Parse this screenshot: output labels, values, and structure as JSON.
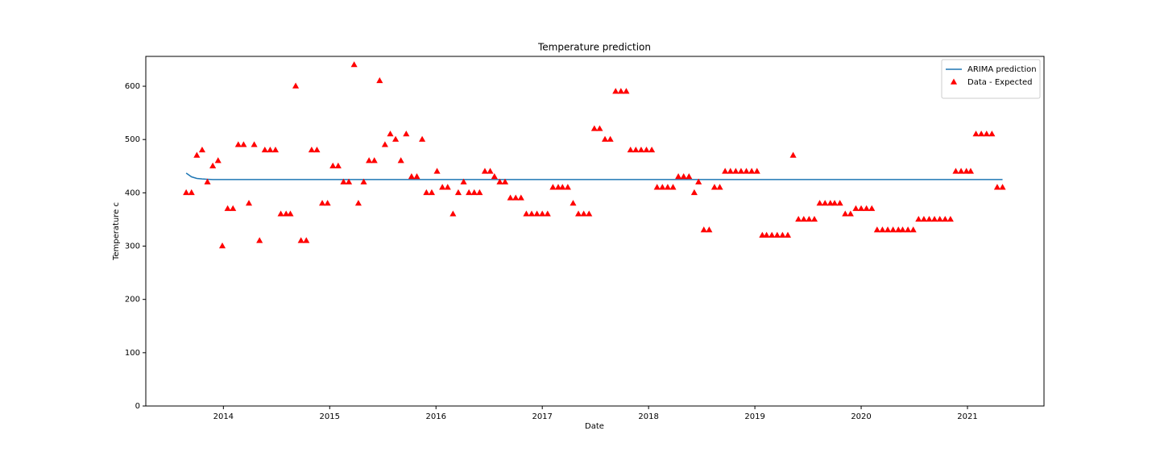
{
  "chart_data": {
    "type": "line",
    "title": "Temperature prediction",
    "x_label": "Date",
    "y_label": "Temperature c",
    "xlim": [
      2013.27,
      2021.72
    ],
    "ylim": [
      0,
      656
    ],
    "xticks": [
      2014,
      2015,
      2016,
      2017,
      2018,
      2019,
      2020,
      2021
    ],
    "yticks": [
      0,
      100,
      200,
      300,
      400,
      500,
      600
    ],
    "grid": false,
    "legend": "upper right",
    "series": [
      {
        "name": "ARIMA prediction",
        "type": "line",
        "color": "#1f77b4",
        "x": [
          2013.65,
          2013.7,
          2013.75,
          2013.8,
          2013.9,
          2021.33
        ],
        "values": [
          437,
          430,
          427,
          426,
          425,
          425
        ]
      },
      {
        "name": "Data - Expected",
        "type": "scatter",
        "marker": "triangle",
        "color": "#ff0000",
        "x": [
          2013.65,
          2013.7,
          2013.75,
          2013.8,
          2013.85,
          2013.9,
          2013.95,
          2013.99,
          2014.04,
          2014.09,
          2014.14,
          2014.19,
          2014.24,
          2014.29,
          2014.34,
          2014.39,
          2014.44,
          2014.49,
          2014.54,
          2014.59,
          2014.63,
          2014.68,
          2014.73,
          2014.78,
          2014.83,
          2014.88,
          2014.93,
          2014.98,
          2015.03,
          2015.08,
          2015.13,
          2015.18,
          2015.23,
          2015.27,
          2015.32,
          2015.37,
          2015.42,
          2015.47,
          2015.52,
          2015.57,
          2015.62,
          2015.67,
          2015.72,
          2015.77,
          2015.82,
          2015.87,
          2015.91,
          2015.96,
          2016.01,
          2016.06,
          2016.11,
          2016.16,
          2016.21,
          2016.26,
          2016.31,
          2016.36,
          2016.41,
          2016.46,
          2016.51,
          2016.55,
          2016.6,
          2016.65,
          2016.7,
          2016.75,
          2016.8,
          2016.85,
          2016.9,
          2016.95,
          2017.0,
          2017.05,
          2017.1,
          2017.15,
          2017.19,
          2017.24,
          2017.29,
          2017.34,
          2017.39,
          2017.44,
          2017.49,
          2017.54,
          2017.59,
          2017.64,
          2017.69,
          2017.74,
          2017.79,
          2017.83,
          2017.88,
          2017.93,
          2017.98,
          2018.03,
          2018.08,
          2018.13,
          2018.18,
          2018.23,
          2018.28,
          2018.33,
          2018.38,
          2018.43,
          2018.47,
          2018.52,
          2018.57,
          2018.62,
          2018.67,
          2018.72,
          2018.77,
          2018.82,
          2018.87,
          2018.92,
          2018.97,
          2019.02,
          2019.07,
          2019.11,
          2019.16,
          2019.21,
          2019.26,
          2019.31,
          2019.36,
          2019.41,
          2019.46,
          2019.51,
          2019.56,
          2019.61,
          2019.66,
          2019.71,
          2019.75,
          2019.8,
          2019.85,
          2019.9,
          2019.95,
          2020.0,
          2020.05,
          2020.1,
          2020.15,
          2020.2,
          2020.25,
          2020.3,
          2020.35,
          2020.39,
          2020.44,
          2020.49,
          2020.54,
          2020.59,
          2020.64,
          2020.69,
          2020.74,
          2020.79,
          2020.84,
          2020.89,
          2020.94,
          2020.99,
          2021.03,
          2021.08,
          2021.13,
          2021.18,
          2021.23,
          2021.28,
          2021.33
        ],
        "values": [
          400,
          400,
          470,
          480,
          420,
          450,
          460,
          300,
          370,
          370,
          490,
          490,
          380,
          490,
          310,
          480,
          480,
          480,
          360,
          360,
          360,
          600,
          310,
          310,
          480,
          480,
          380,
          380,
          450,
          450,
          420,
          420,
          640,
          380,
          420,
          460,
          460,
          610,
          490,
          510,
          500,
          460,
          510,
          430,
          430,
          500,
          400,
          400,
          440,
          410,
          410,
          360,
          400,
          420,
          400,
          400,
          400,
          440,
          440,
          430,
          420,
          420,
          390,
          390,
          390,
          360,
          360,
          360,
          360,
          360,
          410,
          410,
          410,
          410,
          380,
          360,
          360,
          360,
          520,
          520,
          500,
          500,
          590,
          590,
          590,
          480,
          480,
          480,
          480,
          480,
          410,
          410,
          410,
          410,
          430,
          430,
          430,
          400,
          420,
          330,
          330,
          410,
          410,
          440,
          440,
          440,
          440,
          440,
          440,
          440,
          320,
          320,
          320,
          320,
          320,
          320,
          470,
          350,
          350,
          350,
          350,
          380,
          380,
          380,
          380,
          380,
          360,
          360,
          370,
          370,
          370,
          370,
          330,
          330,
          330,
          330,
          330,
          330,
          330,
          330,
          350,
          350,
          350,
          350,
          350,
          350,
          350,
          440,
          440,
          440,
          440,
          510,
          510,
          510,
          510,
          410,
          410
        ]
      }
    ]
  }
}
